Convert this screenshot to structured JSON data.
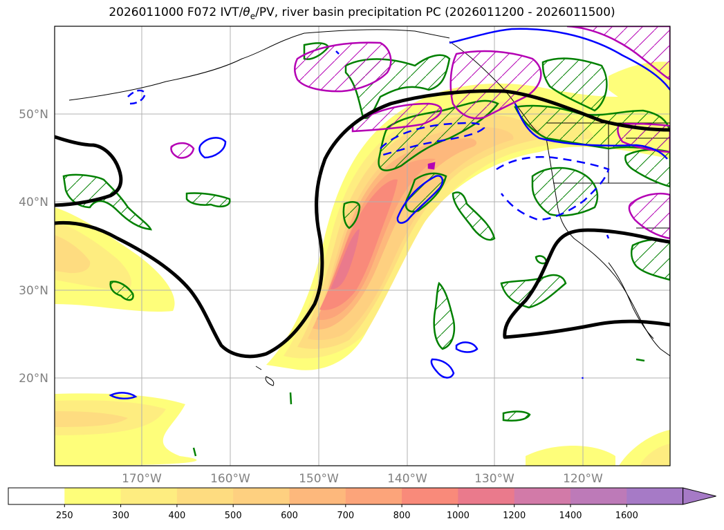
{
  "title": {
    "prefix": "2026011000 F072 IVT/",
    "theta": "θ",
    "theta_sub": "e",
    "suffix": "/PV, river basin precipitation PC (2026011200 - 2026011500)"
  },
  "axes": {
    "lat_labels": [
      "50°N",
      "40°N",
      "30°N",
      "20°N"
    ],
    "lon_labels": [
      "170°W",
      "160°W",
      "150°W",
      "140°W",
      "130°W",
      "120°W"
    ]
  },
  "colorbar": {
    "ticks": [
      "250",
      "300",
      "400",
      "500",
      "600",
      "700",
      "800",
      "1000",
      "1200",
      "1400",
      "1600"
    ],
    "colors": [
      "#ffffff",
      "#fefe7a",
      "#feed80",
      "#fedc80",
      "#fed080",
      "#fdb87c",
      "#fca47a",
      "#f98a7a",
      "#ea7a8c",
      "#d27aa8",
      "#bd7ab8",
      "#a67ac6"
    ]
  },
  "colors": {
    "theta_e": "#000000",
    "pv_negative": "#0000ff",
    "pv_positive": "#b400b4",
    "precip": "#008000",
    "coast": "#000000",
    "grid": "#b0b0b0"
  }
}
